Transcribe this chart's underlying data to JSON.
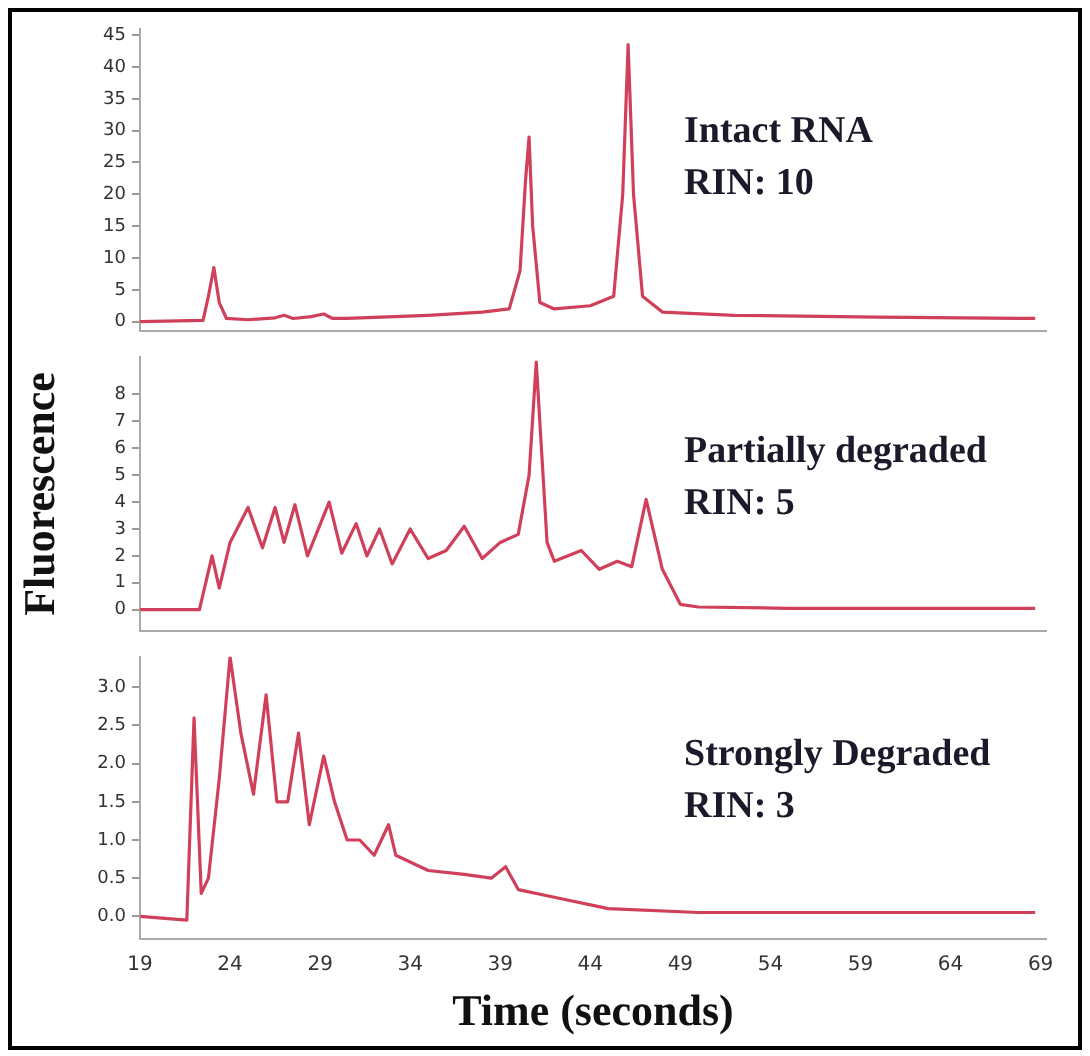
{
  "chart_data": [
    {
      "type": "line",
      "xlim": [
        19,
        69.3
      ],
      "xticks": [
        19,
        24,
        29,
        34,
        39,
        44,
        49,
        54,
        59,
        64,
        69
      ],
      "ylim": [
        -1.5,
        46
      ],
      "yticks": [
        0,
        5,
        10,
        15,
        20,
        25,
        30,
        35,
        40,
        45
      ],
      "tick_labels": "y",
      "annotations": [
        "Intact RNA",
        "RIN: 10"
      ],
      "series": [
        {
          "color": "#d0405a",
          "x": [
            19,
            22.5,
            22.8,
            23.1,
            23.4,
            23.8,
            25,
            26.5,
            27,
            27.5,
            28.5,
            29.2,
            29.7,
            30.5,
            35,
            38,
            39.5,
            40.1,
            40.4,
            40.6,
            40.8,
            41.2,
            42,
            44,
            45.3,
            45.8,
            46.1,
            46.4,
            46.9,
            48,
            52,
            60,
            68.7
          ],
          "values": [
            0,
            0.2,
            4,
            8.5,
            3,
            0.5,
            0.3,
            0.6,
            1,
            0.5,
            0.8,
            1.2,
            0.5,
            0.5,
            1,
            1.5,
            2,
            8,
            22,
            29,
            15,
            3,
            2,
            2.5,
            4,
            20,
            43.5,
            20,
            4,
            1.5,
            1,
            0.7,
            0.5
          ]
        }
      ]
    },
    {
      "type": "line",
      "xlim": [
        19,
        69.3
      ],
      "xticks": [
        19,
        24,
        29,
        34,
        39,
        44,
        49,
        54,
        59,
        64,
        69
      ],
      "ylim": [
        -0.8,
        9.4
      ],
      "yticks": [
        0,
        1,
        2,
        3,
        4,
        5,
        6,
        7,
        8
      ],
      "tick_labels": "y",
      "ylabel": "Fluorescence",
      "annotations": [
        "Partially degraded",
        "RIN: 5"
      ],
      "series": [
        {
          "color": "#d0405a",
          "x": [
            19,
            22.3,
            23,
            23.4,
            24,
            25,
            25.8,
            26.5,
            27,
            27.6,
            28.3,
            29.5,
            30.2,
            31,
            31.6,
            32.3,
            33,
            34,
            35,
            36,
            37,
            38,
            39,
            40,
            40.6,
            41,
            41.6,
            42,
            43.5,
            44.5,
            45.5,
            46.3,
            47.1,
            48,
            49,
            50,
            55,
            68.7
          ],
          "values": [
            0,
            0,
            2,
            0.8,
            2.5,
            3.8,
            2.3,
            3.8,
            2.5,
            3.9,
            2,
            4,
            2.1,
            3.2,
            2,
            3,
            1.7,
            3,
            1.9,
            2.2,
            3.1,
            1.9,
            2.5,
            2.8,
            5,
            9.2,
            2.5,
            1.8,
            2.2,
            1.5,
            1.8,
            1.6,
            4.1,
            1.5,
            0.2,
            0.1,
            0.05,
            0.05
          ]
        }
      ]
    },
    {
      "type": "line",
      "xlim": [
        19,
        69.3
      ],
      "xticks": [
        19,
        24,
        29,
        34,
        39,
        44,
        49,
        54,
        59,
        64,
        69
      ],
      "ylim": [
        -0.3,
        3.4
      ],
      "yticks": [
        {
          "value": 0,
          "label": "0.0"
        },
        {
          "value": 0.5,
          "label": "0.5"
        },
        {
          "value": 1,
          "label": "1.0"
        },
        {
          "value": 1.5,
          "label": "1.5"
        },
        {
          "value": 2,
          "label": "2.0"
        },
        {
          "value": 2.5,
          "label": "2.5"
        },
        {
          "value": 3,
          "label": "3.0"
        }
      ],
      "xlabel": "Time (seconds)",
      "annotations": [
        "Strongly Degraded",
        "RIN: 3"
      ],
      "series": [
        {
          "color": "#d0405a",
          "x": [
            19,
            21.6,
            22,
            22.4,
            22.8,
            23.4,
            24,
            24.6,
            25.3,
            26,
            26.6,
            27.2,
            27.8,
            28.4,
            29.2,
            29.8,
            30.5,
            31.2,
            32,
            32.8,
            33.2,
            35,
            37,
            38.5,
            39.3,
            40,
            42,
            45,
            50,
            68.7
          ],
          "values": [
            0,
            -0.05,
            2.6,
            0.3,
            0.5,
            1.8,
            3.4,
            2.4,
            1.6,
            2.9,
            1.5,
            1.5,
            2.4,
            1.2,
            2.1,
            1.5,
            1,
            1,
            0.8,
            1.2,
            0.8,
            0.6,
            0.55,
            0.5,
            0.65,
            0.35,
            0.25,
            0.1,
            0.05,
            0.05
          ]
        }
      ]
    }
  ]
}
